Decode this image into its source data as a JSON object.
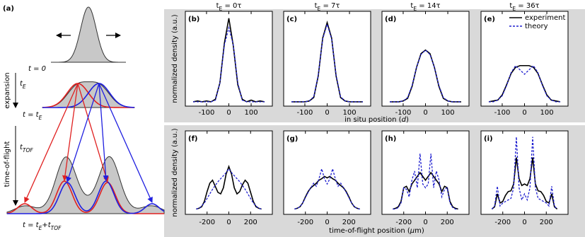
{
  "panel_a": {
    "label": "(a)",
    "t0": "t = 0",
    "expansion": "expansion",
    "tE": [
      "t",
      "E"
    ],
    "t_tE": [
      "t = t",
      "E"
    ],
    "tof": "time-of-flight",
    "tTOF": [
      "t",
      "TOF"
    ],
    "t_final": [
      "t = t",
      "E",
      "+t",
      "TOF"
    ]
  },
  "rows": [
    {
      "ylabel": "normalized density (a.u.)",
      "xlabel": [
        "in situ position (",
        "d",
        ")"
      ]
    },
    {
      "ylabel": "normalized density (a.u.)",
      "xlabel": [
        "time-of-flight position (",
        "μ",
        "m)"
      ]
    }
  ],
  "chart_data": [
    {
      "type": "line",
      "label": "(b)",
      "header": [
        "t",
        "E",
        " = 0τ"
      ],
      "xlim": [
        -195,
        195
      ],
      "xticks": [
        -100,
        0,
        100
      ],
      "ylim": [
        -0.05,
        1.05
      ],
      "x": [
        -160,
        -140,
        -120,
        -100,
        -80,
        -60,
        -40,
        -20,
        0,
        20,
        40,
        60,
        80,
        100,
        120,
        140,
        160
      ],
      "series": [
        {
          "color": "#000000",
          "style": "solid",
          "values": [
            0.0,
            0.01,
            0.0,
            0.01,
            0.0,
            0.03,
            0.22,
            0.68,
            0.97,
            0.65,
            0.2,
            0.03,
            0.0,
            0.02,
            0.0,
            0.01,
            0.0
          ]
        },
        {
          "color": "#2020d0",
          "style": "dashed",
          "values": [
            0.0,
            0.0,
            0.0,
            0.0,
            0.0,
            0.02,
            0.22,
            0.66,
            0.86,
            0.66,
            0.22,
            0.02,
            0.0,
            0.0,
            0.0,
            0.0,
            0.0
          ]
        }
      ]
    },
    {
      "type": "line",
      "label": "(c)",
      "header": [
        "t",
        "E",
        " = 7τ"
      ],
      "xlim": [
        -195,
        195
      ],
      "xticks": [
        -100,
        0,
        100
      ],
      "ylim": [
        -0.05,
        1.05
      ],
      "x": [
        -160,
        -140,
        -120,
        -100,
        -80,
        -60,
        -40,
        -20,
        0,
        20,
        40,
        60,
        80,
        100,
        120,
        140,
        160
      ],
      "series": [
        {
          "color": "#000000",
          "style": "solid",
          "values": [
            0.0,
            0.0,
            0.0,
            0.0,
            0.01,
            0.05,
            0.3,
            0.74,
            0.92,
            0.74,
            0.3,
            0.05,
            0.01,
            0.0,
            0.0,
            0.0,
            0.0
          ]
        },
        {
          "color": "#2020d0",
          "style": "dashed",
          "values": [
            0.0,
            0.0,
            0.0,
            0.0,
            0.01,
            0.06,
            0.31,
            0.73,
            0.9,
            0.73,
            0.31,
            0.06,
            0.01,
            0.0,
            0.0,
            0.0,
            0.0
          ]
        }
      ]
    },
    {
      "type": "line",
      "label": "(d)",
      "header": [
        "t",
        "E",
        " = 14τ"
      ],
      "xlim": [
        -195,
        195
      ],
      "xticks": [
        -100,
        0,
        100
      ],
      "ylim": [
        -0.05,
        1.05
      ],
      "x": [
        -160,
        -140,
        -120,
        -100,
        -80,
        -60,
        -40,
        -20,
        0,
        20,
        40,
        60,
        80,
        100,
        120,
        140,
        160
      ],
      "series": [
        {
          "color": "#000000",
          "style": "solid",
          "values": [
            0.0,
            0.0,
            0.0,
            0.01,
            0.04,
            0.18,
            0.4,
            0.56,
            0.6,
            0.56,
            0.4,
            0.18,
            0.04,
            0.01,
            0.0,
            0.0,
            0.0
          ]
        },
        {
          "color": "#2020d0",
          "style": "dashed",
          "values": [
            0.0,
            0.0,
            0.0,
            0.01,
            0.05,
            0.19,
            0.4,
            0.55,
            0.6,
            0.55,
            0.4,
            0.19,
            0.05,
            0.01,
            0.0,
            0.0,
            0.0
          ]
        }
      ]
    },
    {
      "type": "line",
      "label": "(e)",
      "header": [
        "t",
        "E",
        " = 36τ"
      ],
      "xlim": [
        -195,
        195
      ],
      "xticks": [
        -100,
        0,
        100
      ],
      "ylim": [
        -0.05,
        1.05
      ],
      "legend": "upper right",
      "x": [
        -160,
        -140,
        -120,
        -100,
        -80,
        -60,
        -40,
        -20,
        0,
        20,
        40,
        60,
        80,
        100,
        120,
        140,
        160
      ],
      "series": [
        {
          "name": "experiment",
          "color": "#000000",
          "style": "solid",
          "values": [
            0.0,
            0.01,
            0.02,
            0.08,
            0.2,
            0.33,
            0.4,
            0.42,
            0.42,
            0.42,
            0.4,
            0.33,
            0.2,
            0.08,
            0.02,
            0.01,
            0.0
          ]
        },
        {
          "name": "theory",
          "color": "#2020d0",
          "style": "dashed",
          "values": [
            0.0,
            0.0,
            0.02,
            0.07,
            0.19,
            0.34,
            0.42,
            0.37,
            0.32,
            0.37,
            0.42,
            0.34,
            0.19,
            0.07,
            0.02,
            0.0,
            0.0
          ]
        }
      ]
    },
    {
      "type": "line",
      "label": "(f)",
      "xlim": [
        -400,
        400
      ],
      "xticks": [
        -200,
        0,
        200
      ],
      "ylim": [
        -0.05,
        1.05
      ],
      "x": [
        -300,
        -275,
        -250,
        -225,
        -200,
        -175,
        -150,
        -125,
        -100,
        -75,
        -50,
        -25,
        0,
        25,
        50,
        75,
        100,
        125,
        150,
        175,
        200,
        225,
        250,
        275,
        300
      ],
      "series": [
        {
          "color": "#000000",
          "style": "solid",
          "values": [
            0.02,
            0.03,
            0.05,
            0.12,
            0.25,
            0.36,
            0.4,
            0.32,
            0.24,
            0.22,
            0.3,
            0.48,
            0.58,
            0.48,
            0.3,
            0.22,
            0.25,
            0.34,
            0.4,
            0.36,
            0.24,
            0.12,
            0.05,
            0.03,
            0.02
          ]
        },
        {
          "color": "#2020d0",
          "style": "dashed",
          "values": [
            0.02,
            0.03,
            0.06,
            0.1,
            0.16,
            0.22,
            0.28,
            0.33,
            0.38,
            0.42,
            0.46,
            0.5,
            0.55,
            0.5,
            0.46,
            0.42,
            0.38,
            0.33,
            0.28,
            0.22,
            0.16,
            0.1,
            0.06,
            0.03,
            0.02
          ]
        }
      ]
    },
    {
      "type": "line",
      "label": "(g)",
      "xlim": [
        -400,
        400
      ],
      "xticks": [
        -200,
        0,
        200
      ],
      "ylim": [
        -0.05,
        1.05
      ],
      "x": [
        -300,
        -275,
        -250,
        -225,
        -200,
        -175,
        -150,
        -125,
        -100,
        -75,
        -50,
        -25,
        0,
        25,
        50,
        75,
        100,
        125,
        150,
        175,
        200,
        225,
        250,
        275,
        300
      ],
      "series": [
        {
          "color": "#000000",
          "style": "solid",
          "values": [
            0.02,
            0.03,
            0.05,
            0.1,
            0.18,
            0.25,
            0.3,
            0.33,
            0.36,
            0.4,
            0.42,
            0.45,
            0.43,
            0.45,
            0.42,
            0.4,
            0.36,
            0.33,
            0.3,
            0.25,
            0.18,
            0.1,
            0.05,
            0.03,
            0.02
          ]
        },
        {
          "color": "#2020d0",
          "style": "dashed",
          "values": [
            0.02,
            0.03,
            0.05,
            0.1,
            0.17,
            0.24,
            0.3,
            0.36,
            0.32,
            0.42,
            0.55,
            0.42,
            0.35,
            0.42,
            0.55,
            0.42,
            0.32,
            0.36,
            0.3,
            0.24,
            0.17,
            0.1,
            0.05,
            0.03,
            0.02
          ]
        }
      ]
    },
    {
      "type": "line",
      "label": "(h)",
      "xlim": [
        -400,
        400
      ],
      "xticks": [
        -200,
        0,
        200
      ],
      "ylim": [
        -0.05,
        1.05
      ],
      "x": [
        -300,
        -275,
        -250,
        -225,
        -200,
        -175,
        -150,
        -125,
        -100,
        -75,
        -50,
        -25,
        0,
        25,
        50,
        75,
        100,
        125,
        150,
        175,
        200,
        225,
        250,
        275,
        300
      ],
      "series": [
        {
          "color": "#000000",
          "style": "solid",
          "values": [
            0.02,
            0.03,
            0.05,
            0.12,
            0.3,
            0.32,
            0.25,
            0.35,
            0.4,
            0.45,
            0.5,
            0.45,
            0.4,
            0.45,
            0.5,
            0.45,
            0.4,
            0.35,
            0.25,
            0.32,
            0.3,
            0.12,
            0.05,
            0.03,
            0.02
          ]
        },
        {
          "color": "#2020d0",
          "style": "dashed",
          "values": [
            0.02,
            0.02,
            0.04,
            0.1,
            0.3,
            0.28,
            0.18,
            0.4,
            0.52,
            0.3,
            0.75,
            0.35,
            0.3,
            0.35,
            0.75,
            0.3,
            0.52,
            0.4,
            0.18,
            0.28,
            0.3,
            0.1,
            0.04,
            0.02,
            0.02
          ]
        }
      ]
    },
    {
      "type": "line",
      "label": "(i)",
      "xlim": [
        -400,
        400
      ],
      "xticks": [
        -200,
        0,
        200
      ],
      "ylim": [
        -0.05,
        1.05
      ],
      "x": [
        -300,
        -275,
        -250,
        -225,
        -200,
        -175,
        -150,
        -125,
        -100,
        -75,
        -50,
        -25,
        0,
        25,
        50,
        75,
        100,
        125,
        150,
        175,
        200,
        225,
        250,
        275,
        300
      ],
      "series": [
        {
          "color": "#000000",
          "style": "solid",
          "values": [
            0.02,
            0.05,
            0.22,
            0.1,
            0.12,
            0.2,
            0.25,
            0.26,
            0.35,
            0.7,
            0.42,
            0.33,
            0.35,
            0.33,
            0.42,
            0.7,
            0.35,
            0.26,
            0.25,
            0.2,
            0.12,
            0.1,
            0.22,
            0.05,
            0.02
          ]
        },
        {
          "color": "#2020d0",
          "style": "dashed",
          "values": [
            0.02,
            0.06,
            0.32,
            0.06,
            0.1,
            0.12,
            0.14,
            0.16,
            0.3,
            0.97,
            0.3,
            0.14,
            0.22,
            0.14,
            0.3,
            0.97,
            0.3,
            0.16,
            0.14,
            0.12,
            0.1,
            0.06,
            0.32,
            0.06,
            0.02
          ]
        }
      ]
    }
  ]
}
